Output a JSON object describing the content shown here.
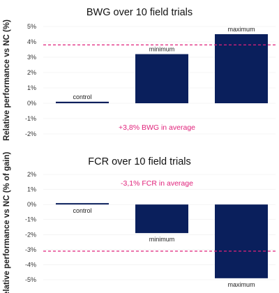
{
  "colors": {
    "bar": "#0a1f5c",
    "reference_line": "#e0217a",
    "annotation": "#e0217a",
    "grid": "#eeeeee"
  },
  "chart_data": [
    {
      "type": "bar",
      "title": "BWG over 10 field trials",
      "ylabel": "Relative performance vs NC (%)",
      "categories": [
        "control",
        "minimum",
        "maximum"
      ],
      "values": [
        0.1,
        3.2,
        4.5
      ],
      "ylim": [
        -2,
        5
      ],
      "yticks": [
        -2,
        -1,
        0,
        1,
        2,
        3,
        4,
        5
      ],
      "tick_labels": [
        "-2%",
        "-1%",
        "0%",
        "1%",
        "2%",
        "3%",
        "4%",
        "5%"
      ],
      "reference_line": 3.8,
      "annotation": "+3,8% BWG in average",
      "grid": false
    },
    {
      "type": "bar",
      "title": "FCR over 10 field trials",
      "ylabel": "Relative performance vs NC (% of gain)",
      "categories": [
        "control",
        "minimum",
        "maximum"
      ],
      "values": [
        0.05,
        -1.9,
        -4.9
      ],
      "ylim": [
        -5,
        2
      ],
      "yticks": [
        -5,
        -4,
        -3,
        -2,
        -1,
        0,
        1,
        2
      ],
      "tick_labels": [
        "-5%",
        "-4%",
        "-3%",
        "-2%",
        "-1%",
        "0%",
        "1%",
        "2%"
      ],
      "reference_line": -3.1,
      "annotation": "-3,1% FCR in average",
      "grid": false
    }
  ]
}
